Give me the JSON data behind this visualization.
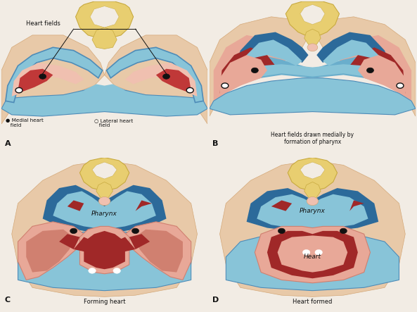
{
  "bg_color": "#f2ece4",
  "skin_color": "#e8c9a8",
  "skin_mid": "#d4a878",
  "skin_dark": "#c09060",
  "blue_light": "#88c4d8",
  "blue_lighter": "#a8d4e4",
  "blue_dark": "#2c6a9a",
  "blue_medium": "#4e8cb8",
  "blue_tube": "#6aaecc",
  "pink_light": "#e8a898",
  "pink_medium": "#d08070",
  "pink_pale": "#f0c0b0",
  "red_dark": "#a02828",
  "red_medium": "#c03838",
  "yellow_color": "#e8ce70",
  "yellow_light": "#f0dc98",
  "yellow_dark": "#c8aa40",
  "white_color": "#ffffff",
  "black_color": "#111111",
  "bg_inner": "#ddd0c0",
  "label_A": "A",
  "label_B": "B",
  "label_C": "C",
  "label_D": "D",
  "text_A_medial": "● Medial heart\n   field",
  "text_A_lateral": "○ Lateral heart\n   field",
  "text_B": "Heart fields drawn medially by\nformation of pharynx",
  "text_C": "Forming heart",
  "text_D": "Heart formed",
  "text_pharynx": "Pharynx",
  "text_heart": "Heart",
  "text_heart_fields": "Heart fields"
}
